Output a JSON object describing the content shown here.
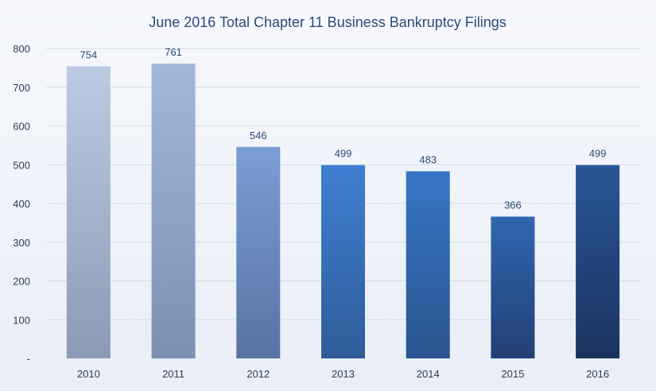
{
  "chart_data": {
    "type": "bar",
    "title": "June 2016 Total Chapter 11 Business Bankruptcy Filings",
    "xlabel": "",
    "ylabel": "",
    "categories": [
      "2010",
      "2011",
      "2012",
      "2013",
      "2014",
      "2015",
      "2016"
    ],
    "values": [
      754,
      761,
      546,
      499,
      483,
      366,
      499
    ],
    "data_labels": [
      "754",
      "761",
      "546",
      "499",
      "483",
      "366",
      "499"
    ],
    "ylim": [
      0,
      800
    ],
    "yticks": [
      0,
      100,
      200,
      300,
      400,
      500,
      600,
      700,
      800
    ],
    "ytick_labels": [
      "-",
      "100",
      "200",
      "300",
      "400",
      "500",
      "600",
      "700",
      "800"
    ],
    "grid": true,
    "legend": "none",
    "bar_colors": [
      [
        "#bccbe4",
        "#8c9bb5"
      ],
      [
        "#a4b6dc",
        "#7d8fb2"
      ],
      [
        "#7b9ed5",
        "#5873a3"
      ],
      [
        "#3f7fd2",
        "#2e5c99"
      ],
      [
        "#3776c6",
        "#2a548f"
      ],
      [
        "#2f66b1",
        "#233f75"
      ],
      [
        "#2a5598",
        "#1a335f"
      ]
    ]
  }
}
